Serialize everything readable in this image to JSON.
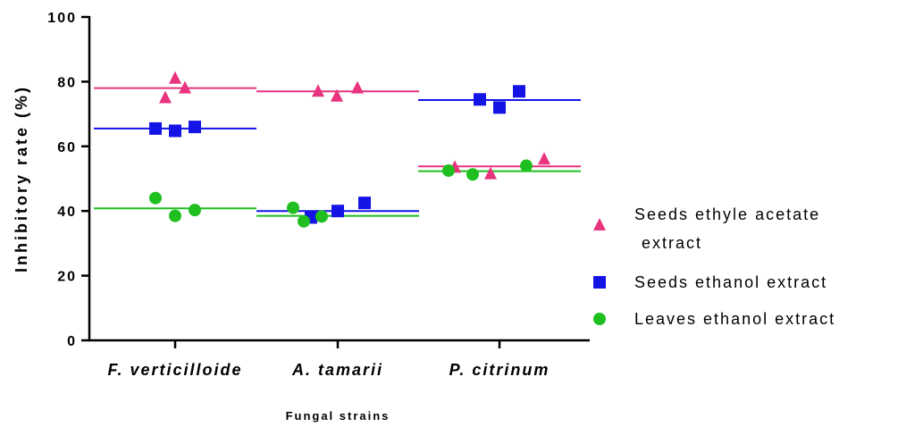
{
  "chart_data": {
    "type": "scatter",
    "categories": [
      "F. verticilloide",
      "A. tamarii",
      "P. citrinum"
    ],
    "ylabel": "Inhibitory rate (%)",
    "xlabel": "Fungal strains",
    "ylim": [
      0,
      100
    ],
    "yticks": [
      0,
      20,
      40,
      60,
      80,
      100
    ],
    "legend_position": "right",
    "series": [
      {
        "name": "Seeds ethyle acetate extract",
        "legend_lines": [
          "Seeds ethyle acetate",
          "extract"
        ],
        "marker": "triangle",
        "color": "#e8337f",
        "means": [
          78.0,
          77.0,
          53.8
        ],
        "points": [
          {
            "cat": 0,
            "values": [
              75.0,
              81.0,
              78.0
            ]
          },
          {
            "cat": 1,
            "values": [
              77.0,
              75.5,
              78.0
            ]
          },
          {
            "cat": 2,
            "values": [
              53.5,
              51.5,
              56.0
            ]
          }
        ]
      },
      {
        "name": "Seeds ethanol extract",
        "legend_lines": [
          "Seeds ethanol extract"
        ],
        "marker": "square",
        "color": "#1414e6",
        "means": [
          65.5,
          40.0,
          74.3
        ],
        "points": [
          {
            "cat": 0,
            "values": [
              65.5,
              64.8,
              66.0
            ]
          },
          {
            "cat": 1,
            "values": [
              38.0,
              40.0,
              42.5
            ]
          },
          {
            "cat": 2,
            "values": [
              74.5,
              72.0,
              77.0
            ]
          }
        ]
      },
      {
        "name": "Leaves ethanol extract",
        "legend_lines": [
          "Leaves ethanol extract"
        ],
        "marker": "circle",
        "color": "#1fbf1f",
        "means": [
          40.8,
          38.5,
          52.3
        ],
        "points": [
          {
            "cat": 0,
            "values": [
              44.0,
              38.5,
              40.3
            ]
          },
          {
            "cat": 1,
            "values": [
              41.0,
              36.8,
              38.3
            ]
          },
          {
            "cat": 2,
            "values": [
              52.5,
              51.3,
              54.0
            ]
          }
        ]
      }
    ]
  }
}
